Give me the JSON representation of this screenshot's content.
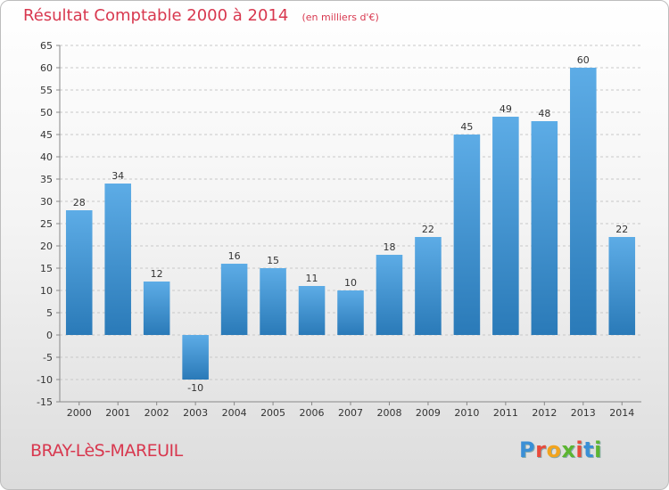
{
  "title": "Résultat Comptable 2000 à 2014",
  "subtitle": "(en milliers d'€)",
  "commune": "BRAY-LèS-MAREUIL",
  "logo_text": "Proxiti",
  "colors": {
    "title": "#d8384f",
    "bar_light": "#5dace6",
    "bar_dark": "#2a7ab8",
    "grid": "#c8c8c8"
  },
  "chart_data": {
    "type": "bar",
    "title": "Résultat Comptable 2000 à 2014",
    "subtitle": "(en milliers d'€)",
    "xlabel": "",
    "ylabel": "",
    "categories": [
      "2000",
      "2001",
      "2002",
      "2003",
      "2004",
      "2005",
      "2006",
      "2007",
      "2008",
      "2009",
      "2010",
      "2011",
      "2012",
      "2013",
      "2014"
    ],
    "values": [
      28,
      34,
      12,
      -10,
      16,
      15,
      11,
      10,
      18,
      22,
      45,
      49,
      48,
      60,
      22
    ],
    "ylim": [
      -15,
      65
    ],
    "yticks": [
      -15,
      -10,
      -5,
      0,
      5,
      10,
      15,
      20,
      25,
      30,
      35,
      40,
      45,
      50,
      55,
      60,
      65
    ],
    "grid": true,
    "legend": "none"
  }
}
